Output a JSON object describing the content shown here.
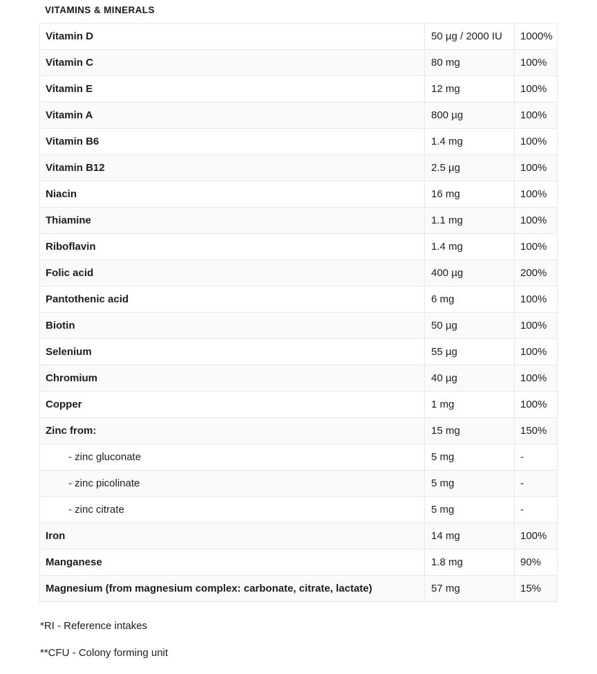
{
  "header": {
    "title": "VITAMINS & MINERALS"
  },
  "table": {
    "columns": [
      "nutrient",
      "amount",
      "ri_percent"
    ],
    "rows": [
      {
        "label": "Vitamin D",
        "amount": "50 µg / 2000 IU",
        "ri": "1000%",
        "sub": false
      },
      {
        "label": "Vitamin C",
        "amount": "80 mg",
        "ri": "100%",
        "sub": false
      },
      {
        "label": "Vitamin E",
        "amount": "12 mg",
        "ri": "100%",
        "sub": false
      },
      {
        "label": "Vitamin A",
        "amount": "800 µg",
        "ri": "100%",
        "sub": false
      },
      {
        "label": "Vitamin B6",
        "amount": "1.4 mg",
        "ri": "100%",
        "sub": false
      },
      {
        "label": "Vitamin B12",
        "amount": "2.5 µg",
        "ri": "100%",
        "sub": false
      },
      {
        "label": "Niacin",
        "amount": "16 mg",
        "ri": "100%",
        "sub": false
      },
      {
        "label": "Thiamine",
        "amount": "1.1 mg",
        "ri": "100%",
        "sub": false
      },
      {
        "label": "Riboflavin",
        "amount": "1.4 mg",
        "ri": "100%",
        "sub": false
      },
      {
        "label": "Folic acid",
        "amount": "400 µg",
        "ri": "200%",
        "sub": false
      },
      {
        "label": "Pantothenic acid",
        "amount": "6 mg",
        "ri": "100%",
        "sub": false
      },
      {
        "label": "Biotin",
        "amount": "50 µg",
        "ri": "100%",
        "sub": false
      },
      {
        "label": "Selenium",
        "amount": "55 µg",
        "ri": "100%",
        "sub": false
      },
      {
        "label": "Chromium",
        "amount": "40 µg",
        "ri": "100%",
        "sub": false
      },
      {
        "label": "Copper",
        "amount": "1 mg",
        "ri": "100%",
        "sub": false
      },
      {
        "label": "Zinc from:",
        "amount": "15 mg",
        "ri": "150%",
        "sub": false
      },
      {
        "label": "- zinc gluconate",
        "amount": "5 mg",
        "ri": "-",
        "sub": true
      },
      {
        "label": "- zinc picolinate",
        "amount": "5 mg",
        "ri": "-",
        "sub": true
      },
      {
        "label": "- zinc citrate",
        "amount": "5 mg",
        "ri": "-",
        "sub": true
      },
      {
        "label": "Iron",
        "amount": "14 mg",
        "ri": "100%",
        "sub": false
      },
      {
        "label": "Manganese",
        "amount": "1.8 mg",
        "ri": "90%",
        "sub": false
      },
      {
        "label": "Magnesium (from magnesium complex: carbonate, citrate, lactate)",
        "amount": "57 mg",
        "ri": "15%",
        "sub": false
      }
    ]
  },
  "footnotes": {
    "ri": "*RI - Reference intakes",
    "cfu": "**CFU - Colony forming unit"
  },
  "colors": {
    "text": "#1d1d1d",
    "border": "#e7e7e7",
    "stripe": "#fafafa",
    "background": "#ffffff"
  }
}
